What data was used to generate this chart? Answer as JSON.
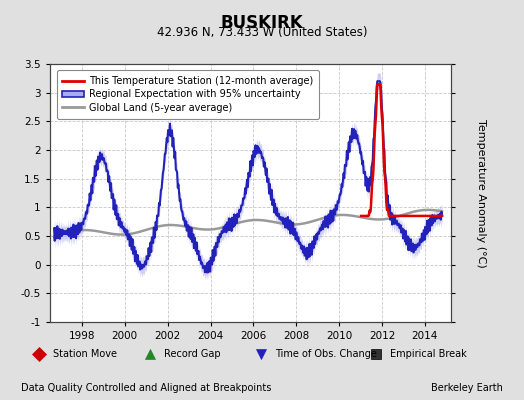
{
  "title": "BUSKIRK",
  "subtitle": "42.936 N, 73.433 W (United States)",
  "ylabel": "Temperature Anomaly (°C)",
  "footer_left": "Data Quality Controlled and Aligned at Breakpoints",
  "footer_right": "Berkeley Earth",
  "xlim": [
    1996.5,
    2015.2
  ],
  "ylim": [
    -1.0,
    3.5
  ],
  "yticks": [
    -1.0,
    -0.5,
    0.0,
    0.5,
    1.0,
    1.5,
    2.0,
    2.5,
    3.0,
    3.5
  ],
  "xticks": [
    1998,
    2000,
    2002,
    2004,
    2006,
    2008,
    2010,
    2012,
    2014
  ],
  "bg_color": "#e0e0e0",
  "plot_bg_color": "#ffffff",
  "grid_color": "#c8c8c8",
  "regional_color": "#2222bb",
  "regional_fill_color": "#aaaaee",
  "station_color": "#dd0000",
  "global_color": "#999999",
  "legend_items": [
    {
      "label": "This Temperature Station (12-month average)",
      "color": "#dd0000",
      "lw": 2.0
    },
    {
      "label": "Regional Expectation with 95% uncertainty",
      "color": "#2222bb",
      "lw": 2.0
    },
    {
      "label": "Global Land (5-year average)",
      "color": "#999999",
      "lw": 2.0
    }
  ],
  "bottom_legend_items": [
    {
      "label": "Station Move",
      "marker": "D",
      "color": "#cc0000"
    },
    {
      "label": "Record Gap",
      "marker": "^",
      "color": "#228822"
    },
    {
      "label": "Time of Obs. Change",
      "marker": "v",
      "color": "#2222bb"
    },
    {
      "label": "Empirical Break",
      "marker": "s",
      "color": "#333333"
    }
  ]
}
